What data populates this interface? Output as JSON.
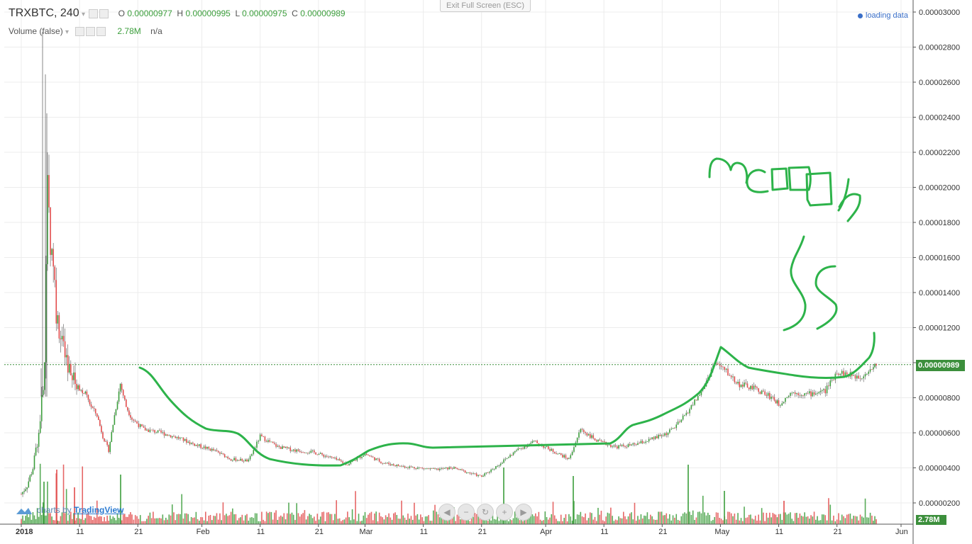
{
  "header": {
    "symbol": "TRXBTC, 240",
    "ohlc": {
      "o_label": "O",
      "o_value": "0.00000977",
      "h_label": "H",
      "h_value": "0.00000995",
      "l_label": "L",
      "l_value": "0.00000975",
      "c_label": "C",
      "c_value": "0.00000989"
    },
    "volume_label": "Volume (false)",
    "volume_value": "2.78M",
    "volume_extra": "n/a"
  },
  "exit_fullscreen_label": "Exit Full Screen (ESC)",
  "loading_label": "loading data",
  "branding": {
    "prefix": "charts by",
    "name": "TradingView"
  },
  "nav_buttons": [
    "◀",
    "−",
    "↻",
    "+",
    "▶"
  ],
  "last_price_tag": "0.00000989",
  "volume_tag": "2.78M",
  "annotation_text": "moon $$",
  "colors": {
    "up": "#3c9e3c",
    "down": "#e24c4c",
    "annotation": "#2db34a",
    "grid": "#ececec"
  },
  "chart_data": {
    "type": "candlestick",
    "title": "TRXBTC, 240",
    "xlabel": "",
    "ylabel": "",
    "ylim": [
      1.6e-06,
      3.01e-05
    ],
    "y_ticks": [
      "0.00003000",
      "0.00002800",
      "0.00002600",
      "0.00002400",
      "0.00002200",
      "0.00002000",
      "0.00001800",
      "0.00001600",
      "0.00001400",
      "0.00001200",
      "0.00001000",
      "0.00000800",
      "0.00000600",
      "0.00000400",
      "0.00000200"
    ],
    "x_ticks": [
      {
        "label": "2018",
        "date": "2018-01-01"
      },
      {
        "label": "11",
        "date": "2018-01-11"
      },
      {
        "label": "21",
        "date": "2018-01-21"
      },
      {
        "label": "Feb",
        "date": "2018-02-01"
      },
      {
        "label": "11",
        "date": "2018-02-11"
      },
      {
        "label": "21",
        "date": "2018-02-21"
      },
      {
        "label": "Mar",
        "date": "2018-03-01"
      },
      {
        "label": "11",
        "date": "2018-03-11"
      },
      {
        "label": "21",
        "date": "2018-03-21"
      },
      {
        "label": "Apr",
        "date": "2018-04-01"
      },
      {
        "label": "11",
        "date": "2018-04-11"
      },
      {
        "label": "21",
        "date": "2018-04-21"
      },
      {
        "label": "May",
        "date": "2018-05-01"
      },
      {
        "label": "11",
        "date": "2018-05-11"
      },
      {
        "label": "21",
        "date": "2018-05-21"
      },
      {
        "label": "Jun",
        "date": "2018-06-01"
      }
    ],
    "price_series": {
      "name": "TRXBTC",
      "points": [
        [
          "2018-01-01",
          2.5e-06
        ],
        [
          "2018-01-02",
          3e-06
        ],
        [
          "2018-01-03",
          4e-06
        ],
        [
          "2018-01-04",
          6e-06
        ],
        [
          "2018-01-05",
          9.5e-06
        ],
        [
          "2018-01-05.5",
          2e-05
        ],
        [
          "2018-01-06",
          1.7e-05
        ],
        [
          "2018-01-06.5",
          1.6e-05
        ],
        [
          "2018-01-07",
          1.3e-05
        ],
        [
          "2018-01-08",
          1.1e-05
        ],
        [
          "2018-01-09",
          9.5e-06
        ],
        [
          "2018-01-10",
          9e-06
        ],
        [
          "2018-01-11",
          8.5e-06
        ],
        [
          "2018-01-12",
          8.2e-06
        ],
        [
          "2018-01-13",
          7.5e-06
        ],
        [
          "2018-01-14",
          7e-06
        ],
        [
          "2018-01-15",
          5.8e-06
        ],
        [
          "2018-01-16",
          5e-06
        ],
        [
          "2018-01-17",
          7e-06
        ],
        [
          "2018-01-18",
          8.8e-06
        ],
        [
          "2018-01-19",
          7.5e-06
        ],
        [
          "2018-01-20",
          6.8e-06
        ],
        [
          "2018-01-22",
          6.2e-06
        ],
        [
          "2018-01-25",
          6e-06
        ],
        [
          "2018-01-28",
          5.7e-06
        ],
        [
          "2018-01-31",
          5.3e-06
        ],
        [
          "2018-02-03",
          5e-06
        ],
        [
          "2018-02-06",
          4.5e-06
        ],
        [
          "2018-02-09",
          4.4e-06
        ],
        [
          "2018-02-11",
          5.8e-06
        ],
        [
          "2018-02-14",
          5.2e-06
        ],
        [
          "2018-02-17",
          5e-06
        ],
        [
          "2018-02-20",
          4.9e-06
        ],
        [
          "2018-02-23",
          4.6e-06
        ],
        [
          "2018-02-26",
          4.2e-06
        ],
        [
          "2018-03-01",
          4.8e-06
        ],
        [
          "2018-03-04",
          4.3e-06
        ],
        [
          "2018-03-07",
          4.1e-06
        ],
        [
          "2018-03-10",
          4e-06
        ],
        [
          "2018-03-13",
          3.9e-06
        ],
        [
          "2018-03-16",
          4e-06
        ],
        [
          "2018-03-19",
          3.7e-06
        ],
        [
          "2018-03-21",
          3.5e-06
        ],
        [
          "2018-03-24",
          4.2e-06
        ],
        [
          "2018-03-27",
          5e-06
        ],
        [
          "2018-03-30",
          5.5e-06
        ],
        [
          "2018-04-02",
          5e-06
        ],
        [
          "2018-04-05",
          4.5e-06
        ],
        [
          "2018-04-07",
          6.2e-06
        ],
        [
          "2018-04-10",
          5.5e-06
        ],
        [
          "2018-04-13",
          5.2e-06
        ],
        [
          "2018-04-16",
          5.3e-06
        ],
        [
          "2018-04-19",
          5.6e-06
        ],
        [
          "2018-04-22",
          6e-06
        ],
        [
          "2018-04-24",
          6.6e-06
        ],
        [
          "2018-04-26",
          7.5e-06
        ],
        [
          "2018-04-28",
          8.5e-06
        ],
        [
          "2018-04-30",
          1e-05
        ],
        [
          "2018-05-02",
          9.5e-06
        ],
        [
          "2018-05-04",
          8.8e-06
        ],
        [
          "2018-05-07",
          8.5e-06
        ],
        [
          "2018-05-10",
          8e-06
        ],
        [
          "2018-05-11",
          7.6e-06
        ],
        [
          "2018-05-13",
          8.3e-06
        ],
        [
          "2018-05-16",
          8.2e-06
        ],
        [
          "2018-05-19",
          8.4e-06
        ],
        [
          "2018-05-21",
          9.5e-06
        ],
        [
          "2018-05-23",
          9.3e-06
        ],
        [
          "2018-05-25",
          9.2e-06
        ],
        [
          "2018-05-27",
          9.7e-06
        ],
        [
          "2018-05-28",
          9.9e-06
        ]
      ]
    }
  }
}
